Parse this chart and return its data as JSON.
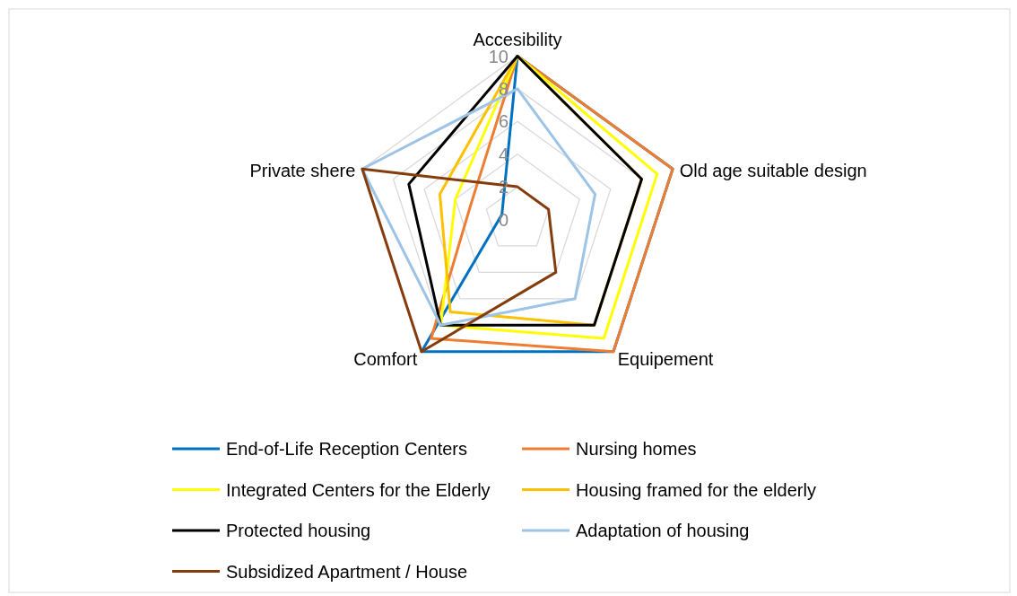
{
  "chart_data": {
    "type": "radar",
    "categories": [
      "Accesibility",
      "Old age suitable design",
      "Equipement",
      "Comfort",
      "Private shere"
    ],
    "ylim": [
      0,
      10
    ],
    "yticks": [
      0,
      2,
      4,
      6,
      8,
      10
    ],
    "grid": true,
    "legend": "bottom",
    "series": [
      {
        "name": "End-of-Life Reception Centers",
        "color": "#0070c0",
        "values": [
          10,
          10,
          10,
          10,
          1
        ]
      },
      {
        "name": "Nursing homes",
        "color": "#ed7d31",
        "values": [
          10,
          10,
          10,
          9,
          3
        ]
      },
      {
        "name": "Integrated Centers for the Elderly",
        "color": "#ffff00",
        "values": [
          10,
          9,
          9,
          8,
          4
        ]
      },
      {
        "name": "Housing framed for the elderly",
        "color": "#ffc000",
        "values": [
          10,
          8,
          8,
          7,
          5
        ]
      },
      {
        "name": "Protected housing",
        "color": "#000000",
        "values": [
          10,
          8,
          8,
          8,
          7
        ]
      },
      {
        "name": "Adaptation of housing",
        "color": "#9dc3e6",
        "values": [
          8,
          5,
          6,
          8,
          10
        ]
      },
      {
        "name": "Subsidized Apartment / House",
        "color": "#843c0c",
        "values": [
          2,
          2,
          4,
          10,
          10
        ]
      }
    ]
  }
}
